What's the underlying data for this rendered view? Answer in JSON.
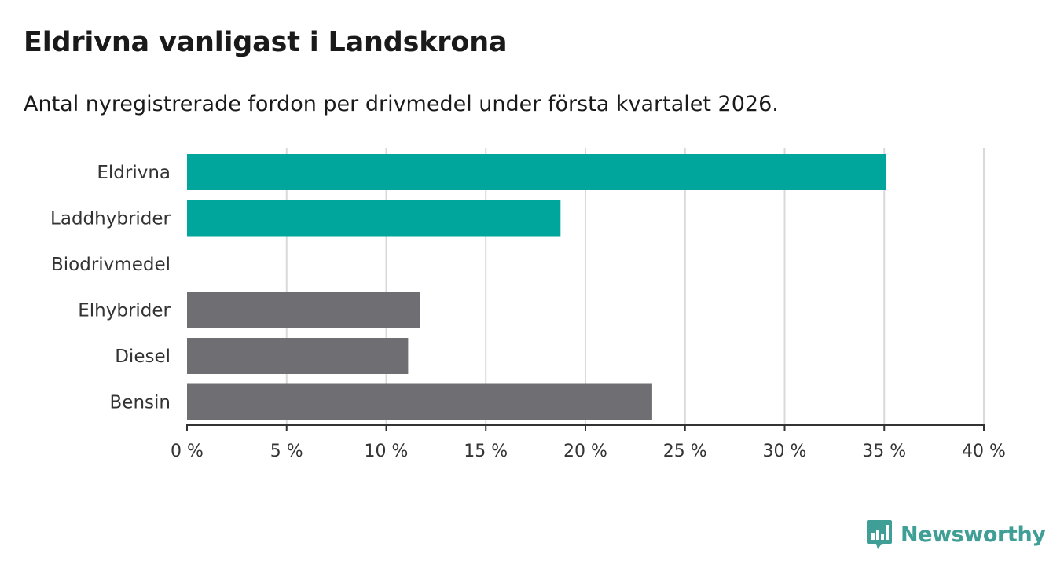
{
  "chart_data": {
    "type": "bar",
    "orientation": "horizontal",
    "title": "Eldrivna vanligast i Landskrona",
    "subtitle": "Antal nyregistrerade fordon per drivmedel under första kvartalet 2026.",
    "xlabel": "",
    "ylabel": "",
    "xlim": [
      0,
      40
    ],
    "grid": true,
    "categories": [
      "Eldrivna",
      "Laddhybrider",
      "Biodrivmedel",
      "Elhybrider",
      "Diesel",
      "Bensin"
    ],
    "values": [
      35.1,
      18.75,
      0,
      11.7,
      11.1,
      23.35
    ],
    "bar_colors": [
      "#00a59b",
      "#00a59b",
      "#00a59b",
      "#6f6e73",
      "#6f6e73",
      "#6f6e73"
    ],
    "ticks": [
      0,
      5,
      10,
      15,
      20,
      25,
      30,
      35,
      40
    ],
    "tick_labels": [
      "0 %",
      "5 %",
      "10 %",
      "15 %",
      "20 %",
      "25 %",
      "30 %",
      "35 %",
      "40 %"
    ]
  },
  "colors": {
    "grid": "#d9d9d9",
    "axis": "#333333",
    "label": "#333333",
    "brand": "#3f9e96"
  },
  "brand": {
    "name": "Newsworthy",
    "icon": "newsworthy-logo-icon"
  }
}
